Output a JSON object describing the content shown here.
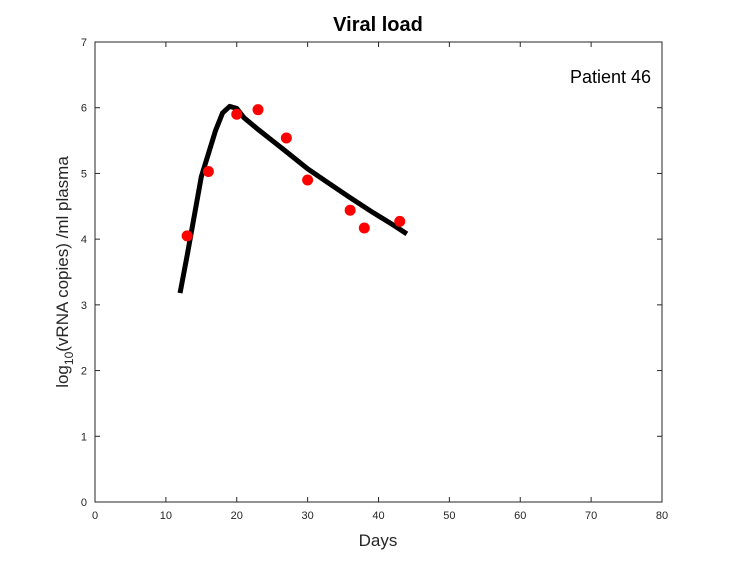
{
  "chart_data": {
    "type": "scatter",
    "title": "Viral load",
    "xlabel": "Days",
    "ylabel": {
      "prefix": "log",
      "subscript": "10",
      "suffix": "(vRNA copies) /ml plasma"
    },
    "annotation": "Patient 46",
    "xlim": [
      0,
      80
    ],
    "ylim": [
      0,
      7
    ],
    "xticks": [
      0,
      10,
      20,
      30,
      40,
      50,
      60,
      70,
      80
    ],
    "yticks": [
      0,
      1,
      2,
      3,
      4,
      5,
      6,
      7
    ],
    "grid": false,
    "series": [
      {
        "kind": "points",
        "color": "#ff0000",
        "x": [
          13,
          16,
          20,
          23,
          27,
          30,
          36,
          38,
          43
        ],
        "y": [
          4.05,
          5.03,
          5.9,
          5.97,
          5.54,
          4.9,
          4.44,
          4.17,
          4.27
        ]
      },
      {
        "kind": "line",
        "color": "#000000",
        "x": [
          12,
          13,
          14,
          15,
          16,
          17,
          18,
          19,
          20,
          21,
          23,
          25,
          27,
          30,
          33,
          36,
          39,
          42,
          44
        ],
        "y": [
          3.18,
          3.75,
          4.35,
          4.95,
          5.3,
          5.65,
          5.92,
          6.02,
          5.99,
          5.85,
          5.67,
          5.5,
          5.33,
          5.07,
          4.85,
          4.63,
          4.42,
          4.22,
          4.08
        ]
      }
    ]
  }
}
